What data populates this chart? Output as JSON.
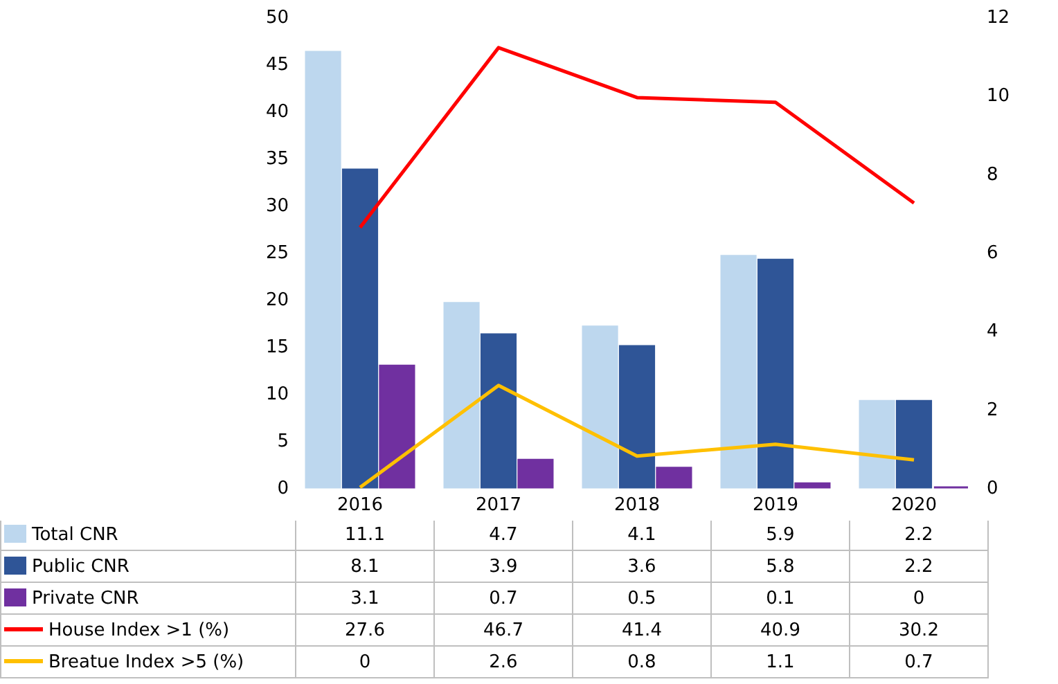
{
  "chart_data": {
    "type": "bar",
    "categories": [
      "2016",
      "2017",
      "2018",
      "2019",
      "2020"
    ],
    "series": [
      {
        "name": "Total CNR",
        "axis": "y2",
        "color": "#bdd7ee",
        "values": [
          11.1,
          4.7,
          4.1,
          5.9,
          2.2
        ]
      },
      {
        "name": "Public CNR",
        "axis": "y2",
        "color": "#2f5597",
        "values": [
          8.1,
          3.9,
          3.6,
          5.8,
          2.2
        ]
      },
      {
        "name": "Private CNR",
        "axis": "y2",
        "color": "#7030a0",
        "values": [
          3.1,
          0.7,
          0.5,
          0.1,
          0
        ]
      },
      {
        "name": "House Index >1 (%)",
        "type": "line",
        "color": "#ff0000",
        "values": [
          27.6,
          46.7,
          41.4,
          40.9,
          30.2
        ]
      },
      {
        "name": "Breatue Index >5 (%)",
        "type": "line",
        "axis": "y2",
        "color": "#ffc000",
        "values": [
          0,
          2.6,
          0.8,
          1.1,
          0.7
        ]
      }
    ],
    "ylim": [
      0,
      50
    ],
    "yticks": [
      0,
      5,
      10,
      15,
      20,
      25,
      30,
      35,
      40,
      45,
      50
    ],
    "y2lim": [
      0,
      12
    ],
    "y2ticks": [
      0,
      2,
      4,
      6,
      8,
      10,
      12
    ],
    "data_labels": true,
    "legend": "bottom",
    "grid": false
  }
}
